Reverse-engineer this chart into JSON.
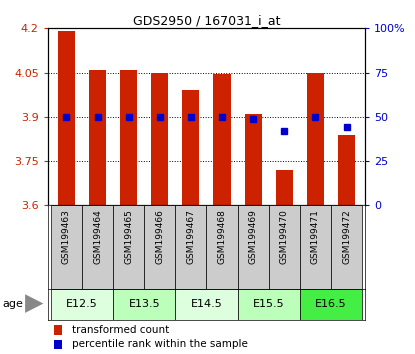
{
  "title": "GDS2950 / 167031_i_at",
  "samples": [
    "GSM199463",
    "GSM199464",
    "GSM199465",
    "GSM199466",
    "GSM199467",
    "GSM199468",
    "GSM199469",
    "GSM199470",
    "GSM199471",
    "GSM199472"
  ],
  "transformed_count": [
    4.19,
    4.06,
    4.06,
    4.05,
    3.99,
    4.046,
    3.91,
    3.72,
    4.05,
    3.84
  ],
  "percentile_rank": [
    50,
    50,
    50,
    50,
    50,
    50,
    49,
    42,
    50,
    44
  ],
  "ylim": [
    3.6,
    4.2
  ],
  "yticks_left": [
    3.6,
    3.75,
    3.9,
    4.05,
    4.2
  ],
  "yticks_right": [
    0,
    25,
    50,
    75,
    100
  ],
  "bar_color": "#cc2200",
  "dot_color": "#0000cc",
  "age_groups": [
    {
      "label": "E12.5",
      "samples": [
        0,
        1
      ],
      "color": "#ddffdd"
    },
    {
      "label": "E13.5",
      "samples": [
        2,
        3
      ],
      "color": "#bbffbb"
    },
    {
      "label": "E14.5",
      "samples": [
        4,
        5
      ],
      "color": "#ddffdd"
    },
    {
      "label": "E15.5",
      "samples": [
        6,
        7
      ],
      "color": "#bbffbb"
    },
    {
      "label": "E16.5",
      "samples": [
        8,
        9
      ],
      "color": "#44ee44"
    }
  ],
  "legend_bar_label": "transformed count",
  "legend_dot_label": "percentile rank within the sample",
  "age_label": "age",
  "sample_box_color": "#cccccc",
  "bar_width": 0.55
}
